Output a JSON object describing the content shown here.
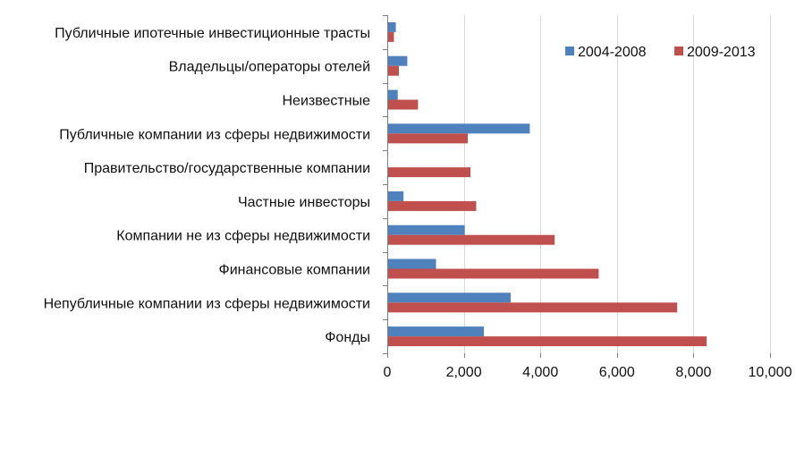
{
  "chart_data": {
    "type": "bar",
    "orientation": "horizontal",
    "title": "",
    "xlabel": "",
    "ylabel": "",
    "xlim": [
      0,
      10000
    ],
    "ticks": [
      0,
      2000,
      4000,
      6000,
      8000,
      10000
    ],
    "tick_labels": [
      "0",
      "2,000",
      "4,000",
      "6,000",
      "8,000",
      "10,000"
    ],
    "grid": "vertical",
    "legend_position": "top-right",
    "categories": [
      "Публичные ипотечные инвестиционные трасты",
      "Владельцы/операторы отелей",
      "Неизвестные",
      "Публичные компании из сферы недвижимости",
      "Правительство/государственные компании",
      "Частные инвесторы",
      "Компании не из сферы недвижимости",
      "Финансовые компании",
      "Непубличные компании из сферы недвижимости",
      "Фонды"
    ],
    "series": [
      {
        "name": "2004-2008",
        "color": "#4f81bd",
        "values": [
          200,
          500,
          250,
          3700,
          0,
          400,
          2000,
          1250,
          3200,
          2500
        ]
      },
      {
        "name": "2009-2013",
        "color": "#c0504d",
        "values": [
          150,
          280,
          780,
          2080,
          2150,
          2300,
          4350,
          5500,
          7550,
          8320
        ]
      }
    ]
  }
}
